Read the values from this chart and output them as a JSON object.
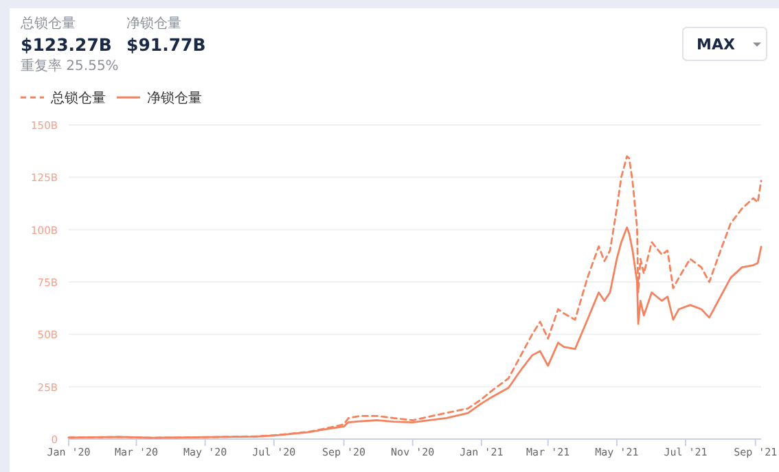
{
  "chart_data": {
    "type": "line",
    "annotations": [
      "总锁仓量",
      "$123.27B",
      "净锁仓量",
      "$91.77B",
      "重复率 25.55%",
      "MAX"
    ],
    "x": [
      "2020-01-01",
      "2020-02-15",
      "2020-03-15",
      "2020-04-15",
      "2020-05-15",
      "2020-06-15",
      "2020-07-01",
      "2020-07-15",
      "2020-08-01",
      "2020-08-15",
      "2020-09-01",
      "2020-09-05",
      "2020-09-15",
      "2020-10-01",
      "2020-10-15",
      "2020-11-01",
      "2020-12-01",
      "2020-12-20",
      "2021-01-01",
      "2021-01-10",
      "2021-01-25",
      "2021-02-05",
      "2021-02-15",
      "2021-02-22",
      "2021-03-01",
      "2021-03-10",
      "2021-03-15",
      "2021-03-25",
      "2021-04-05",
      "2021-04-15",
      "2021-04-20",
      "2021-04-25",
      "2021-05-01",
      "2021-05-05",
      "2021-05-10",
      "2021-05-12",
      "2021-05-15",
      "2021-05-19",
      "2021-05-20",
      "2021-05-22",
      "2021-05-25",
      "2021-06-01",
      "2021-06-10",
      "2021-06-15",
      "2021-06-20",
      "2021-06-25",
      "2021-07-05",
      "2021-07-15",
      "2021-07-22",
      "2021-08-01",
      "2021-08-10",
      "2021-08-20",
      "2021-08-30",
      "2021-09-03",
      "2021-09-06"
    ],
    "series": [
      {
        "name": "总锁仓量",
        "color": "#f5825e",
        "line_style": "dashed",
        "values": [
          0.7,
          1.0,
          0.6,
          0.8,
          1.0,
          1.3,
          1.8,
          2.5,
          3.5,
          5,
          7,
          10,
          11,
          11,
          10,
          9,
          12.5,
          14.6,
          19,
          23,
          29,
          40,
          50,
          56,
          48,
          62,
          60,
          57,
          77,
          92,
          85,
          90,
          110,
          125,
          135,
          134,
          123,
          101,
          70,
          86,
          79,
          94,
          88,
          90,
          72,
          77,
          86,
          82,
          75,
          90,
          103,
          110,
          115,
          113,
          123.3
        ]
      },
      {
        "name": "净锁仓量",
        "color": "#f5825e",
        "line_style": "solid",
        "values": [
          0.7,
          1.0,
          0.6,
          0.8,
          1.0,
          1.2,
          1.7,
          2.4,
          3.3,
          4.6,
          6,
          8,
          8.5,
          9,
          8.3,
          8,
          10,
          12.4,
          17,
          20,
          24.5,
          33,
          40,
          42,
          35,
          46,
          44,
          43,
          57,
          70,
          66,
          70,
          86,
          94,
          101,
          98,
          90,
          75,
          55,
          66,
          59,
          70,
          66,
          68,
          57,
          62,
          64,
          62,
          58,
          68,
          77,
          82,
          83,
          84,
          91.8
        ]
      }
    ],
    "xlim": [
      "2020-01-01",
      "2021-09-06"
    ],
    "xticks": [
      {
        "value": "2020-01-01",
        "label": "Jan '20"
      },
      {
        "value": "2020-03-01",
        "label": "Mar '20"
      },
      {
        "value": "2020-05-01",
        "label": "May '20"
      },
      {
        "value": "2020-07-01",
        "label": "Jul '20"
      },
      {
        "value": "2020-09-01",
        "label": "Sep '20"
      },
      {
        "value": "2020-11-01",
        "label": "Nov '20"
      },
      {
        "value": "2021-01-01",
        "label": "Jan '21"
      },
      {
        "value": "2021-03-01",
        "label": "Mar '21"
      },
      {
        "value": "2021-05-01",
        "label": "May '21"
      },
      {
        "value": "2021-07-01",
        "label": "Jul '21"
      },
      {
        "value": "2021-09-01",
        "label": "Sep '21"
      }
    ],
    "ylim": [
      0,
      150
    ],
    "yticks": [
      0,
      {
        "value": 25,
        "label": "25B"
      },
      {
        "value": 50,
        "label": "50B"
      },
      {
        "value": 75,
        "label": "75B"
      },
      {
        "value": 100,
        "label": "100B"
      },
      {
        "value": 125,
        "label": "125B"
      },
      {
        "value": 150,
        "label": "150B"
      }
    ],
    "grid": "y",
    "legend": "top left",
    "marker": "none"
  }
}
